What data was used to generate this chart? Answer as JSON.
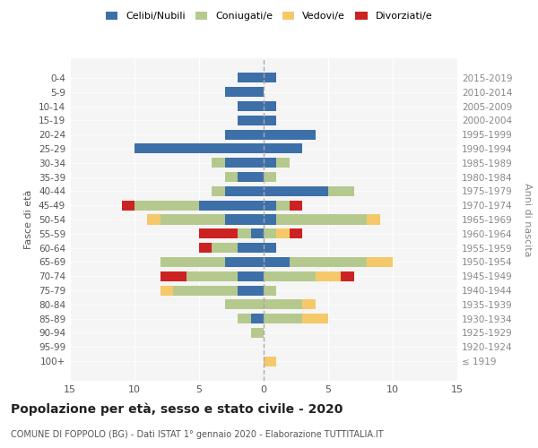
{
  "age_groups": [
    "100+",
    "95-99",
    "90-94",
    "85-89",
    "80-84",
    "75-79",
    "70-74",
    "65-69",
    "60-64",
    "55-59",
    "50-54",
    "45-49",
    "40-44",
    "35-39",
    "30-34",
    "25-29",
    "20-24",
    "15-19",
    "10-14",
    "5-9",
    "0-4"
  ],
  "birth_years": [
    "≤ 1919",
    "1920-1924",
    "1925-1929",
    "1930-1934",
    "1935-1939",
    "1940-1944",
    "1945-1949",
    "1950-1954",
    "1955-1959",
    "1960-1964",
    "1965-1969",
    "1970-1974",
    "1975-1979",
    "1980-1984",
    "1985-1989",
    "1990-1994",
    "1995-1999",
    "2000-2004",
    "2005-2009",
    "2010-2014",
    "2015-2019"
  ],
  "colors": {
    "celibe": "#3d6fa8",
    "coniugato": "#b5c98e",
    "vedovo": "#f5c96a",
    "divorziato": "#cc2222"
  },
  "males": {
    "celibe": [
      0,
      0,
      0,
      1,
      0,
      2,
      2,
      3,
      2,
      1,
      3,
      5,
      3,
      2,
      3,
      10,
      3,
      2,
      2,
      3,
      2
    ],
    "coniugato": [
      0,
      0,
      1,
      1,
      3,
      5,
      4,
      5,
      2,
      1,
      5,
      5,
      1,
      1,
      1,
      0,
      0,
      0,
      0,
      0,
      0
    ],
    "vedovo": [
      0,
      0,
      0,
      0,
      0,
      1,
      0,
      0,
      0,
      0,
      1,
      0,
      0,
      0,
      0,
      0,
      0,
      0,
      0,
      0,
      0
    ],
    "divorziato": [
      0,
      0,
      0,
      0,
      0,
      0,
      2,
      0,
      1,
      3,
      0,
      1,
      0,
      0,
      0,
      0,
      0,
      0,
      0,
      0,
      0
    ]
  },
  "females": {
    "nubile": [
      0,
      0,
      0,
      0,
      0,
      0,
      0,
      2,
      1,
      0,
      1,
      1,
      5,
      0,
      1,
      3,
      4,
      1,
      1,
      0,
      1
    ],
    "coniugata": [
      0,
      0,
      0,
      3,
      3,
      1,
      4,
      6,
      0,
      1,
      7,
      1,
      2,
      1,
      1,
      0,
      0,
      0,
      0,
      0,
      0
    ],
    "vedova": [
      1,
      0,
      0,
      2,
      1,
      0,
      2,
      2,
      0,
      1,
      1,
      0,
      0,
      0,
      0,
      0,
      0,
      0,
      0,
      0,
      0
    ],
    "divorziata": [
      0,
      0,
      0,
      0,
      0,
      0,
      1,
      0,
      0,
      1,
      0,
      1,
      0,
      0,
      0,
      0,
      0,
      0,
      0,
      0,
      0
    ]
  },
  "xlim": 15,
  "title": "Popolazione per età, sesso e stato civile - 2020",
  "subtitle": "COMUNE DI FOPPOLO (BG) - Dati ISTAT 1° gennaio 2020 - Elaborazione TUTTITALIA.IT",
  "ylabel_left": "Fasce di età",
  "ylabel_right": "Anni di nascita",
  "bg_color": "#f5f5f5"
}
